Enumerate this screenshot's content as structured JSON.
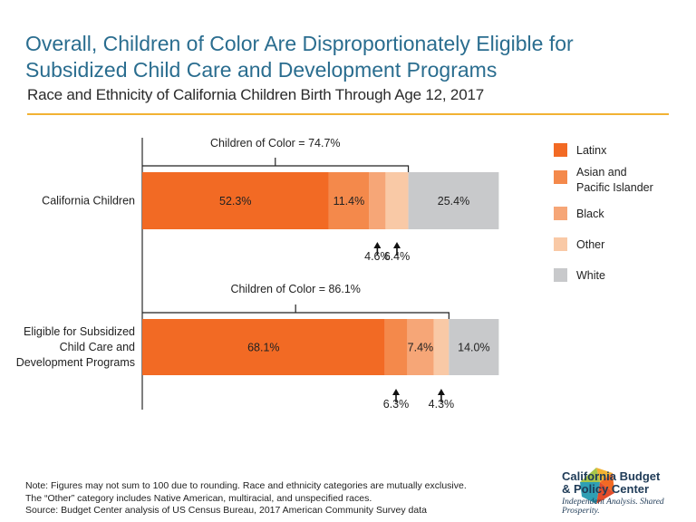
{
  "title": "Overall, Children of Color Are Disproportionately Eligible for Subsidized Child Care and Development Programs",
  "subtitle": "Race and Ethnicity of California Children Birth Through Age 12, 2017",
  "colors": {
    "title": "#2a6d8f",
    "rule": "#f2b233",
    "latinx": "#f26a24",
    "asian": "#f4894b",
    "black": "#f6a677",
    "other": "#f9c9a6",
    "white": "#c8c9cb"
  },
  "chart_data": {
    "type": "bar",
    "orientation": "horizontal",
    "stacked": true,
    "categories": [
      "California Children",
      "Eligible for Subsidized Child Care and Development Programs"
    ],
    "category_label_lines": [
      [
        "California Children"
      ],
      [
        "Eligible for Subsidized",
        "Child Care and",
        "Development Programs"
      ]
    ],
    "series": [
      {
        "name": "Latinx",
        "color_key": "latinx",
        "values": [
          52.3,
          68.1
        ],
        "labels": [
          "52.3%",
          "68.1%"
        ],
        "label_pos": [
          "inside",
          "inside"
        ]
      },
      {
        "name": "Asian and Pacific Islander",
        "legend_lines": [
          "Asian and",
          "Pacific Islander"
        ],
        "color_key": "asian",
        "values": [
          11.4,
          6.3
        ],
        "labels": [
          "11.4%",
          "6.3%"
        ],
        "label_pos": [
          "inside",
          "below"
        ]
      },
      {
        "name": "Black",
        "color_key": "black",
        "values": [
          4.6,
          7.4
        ],
        "labels": [
          "4.6%",
          "7.4%"
        ],
        "label_pos": [
          "below",
          "inside"
        ]
      },
      {
        "name": "Other",
        "color_key": "other",
        "values": [
          6.4,
          4.3
        ],
        "labels": [
          "6.4%",
          "4.3%"
        ],
        "label_pos": [
          "below",
          "below"
        ]
      },
      {
        "name": "White",
        "color_key": "white",
        "values": [
          25.4,
          14.0
        ],
        "labels": [
          "25.4%",
          "14.0%"
        ],
        "label_pos": [
          "inside",
          "inside"
        ]
      }
    ],
    "brackets": [
      {
        "label": "Children of Color = 74.7%",
        "value": 74.7
      },
      {
        "label": "Children of Color = 86.1%",
        "value": 86.1
      }
    ],
    "xlim": [
      0,
      100
    ]
  },
  "note": {
    "line1": "Note: Figures may not sum to 100 due to rounding. Race and ethnicity categories are mutually exclusive.",
    "line2": "The “Other” category includes Native American, multiracial, and unspecified races.",
    "line3": "Source: Budget Center analysis of US Census Bureau, 2017 American Community Survey data"
  },
  "logo": {
    "name_line1": "California Budget",
    "name_line2": "& Policy Center",
    "tagline": "Independent Analysis. Shared Prosperity."
  }
}
